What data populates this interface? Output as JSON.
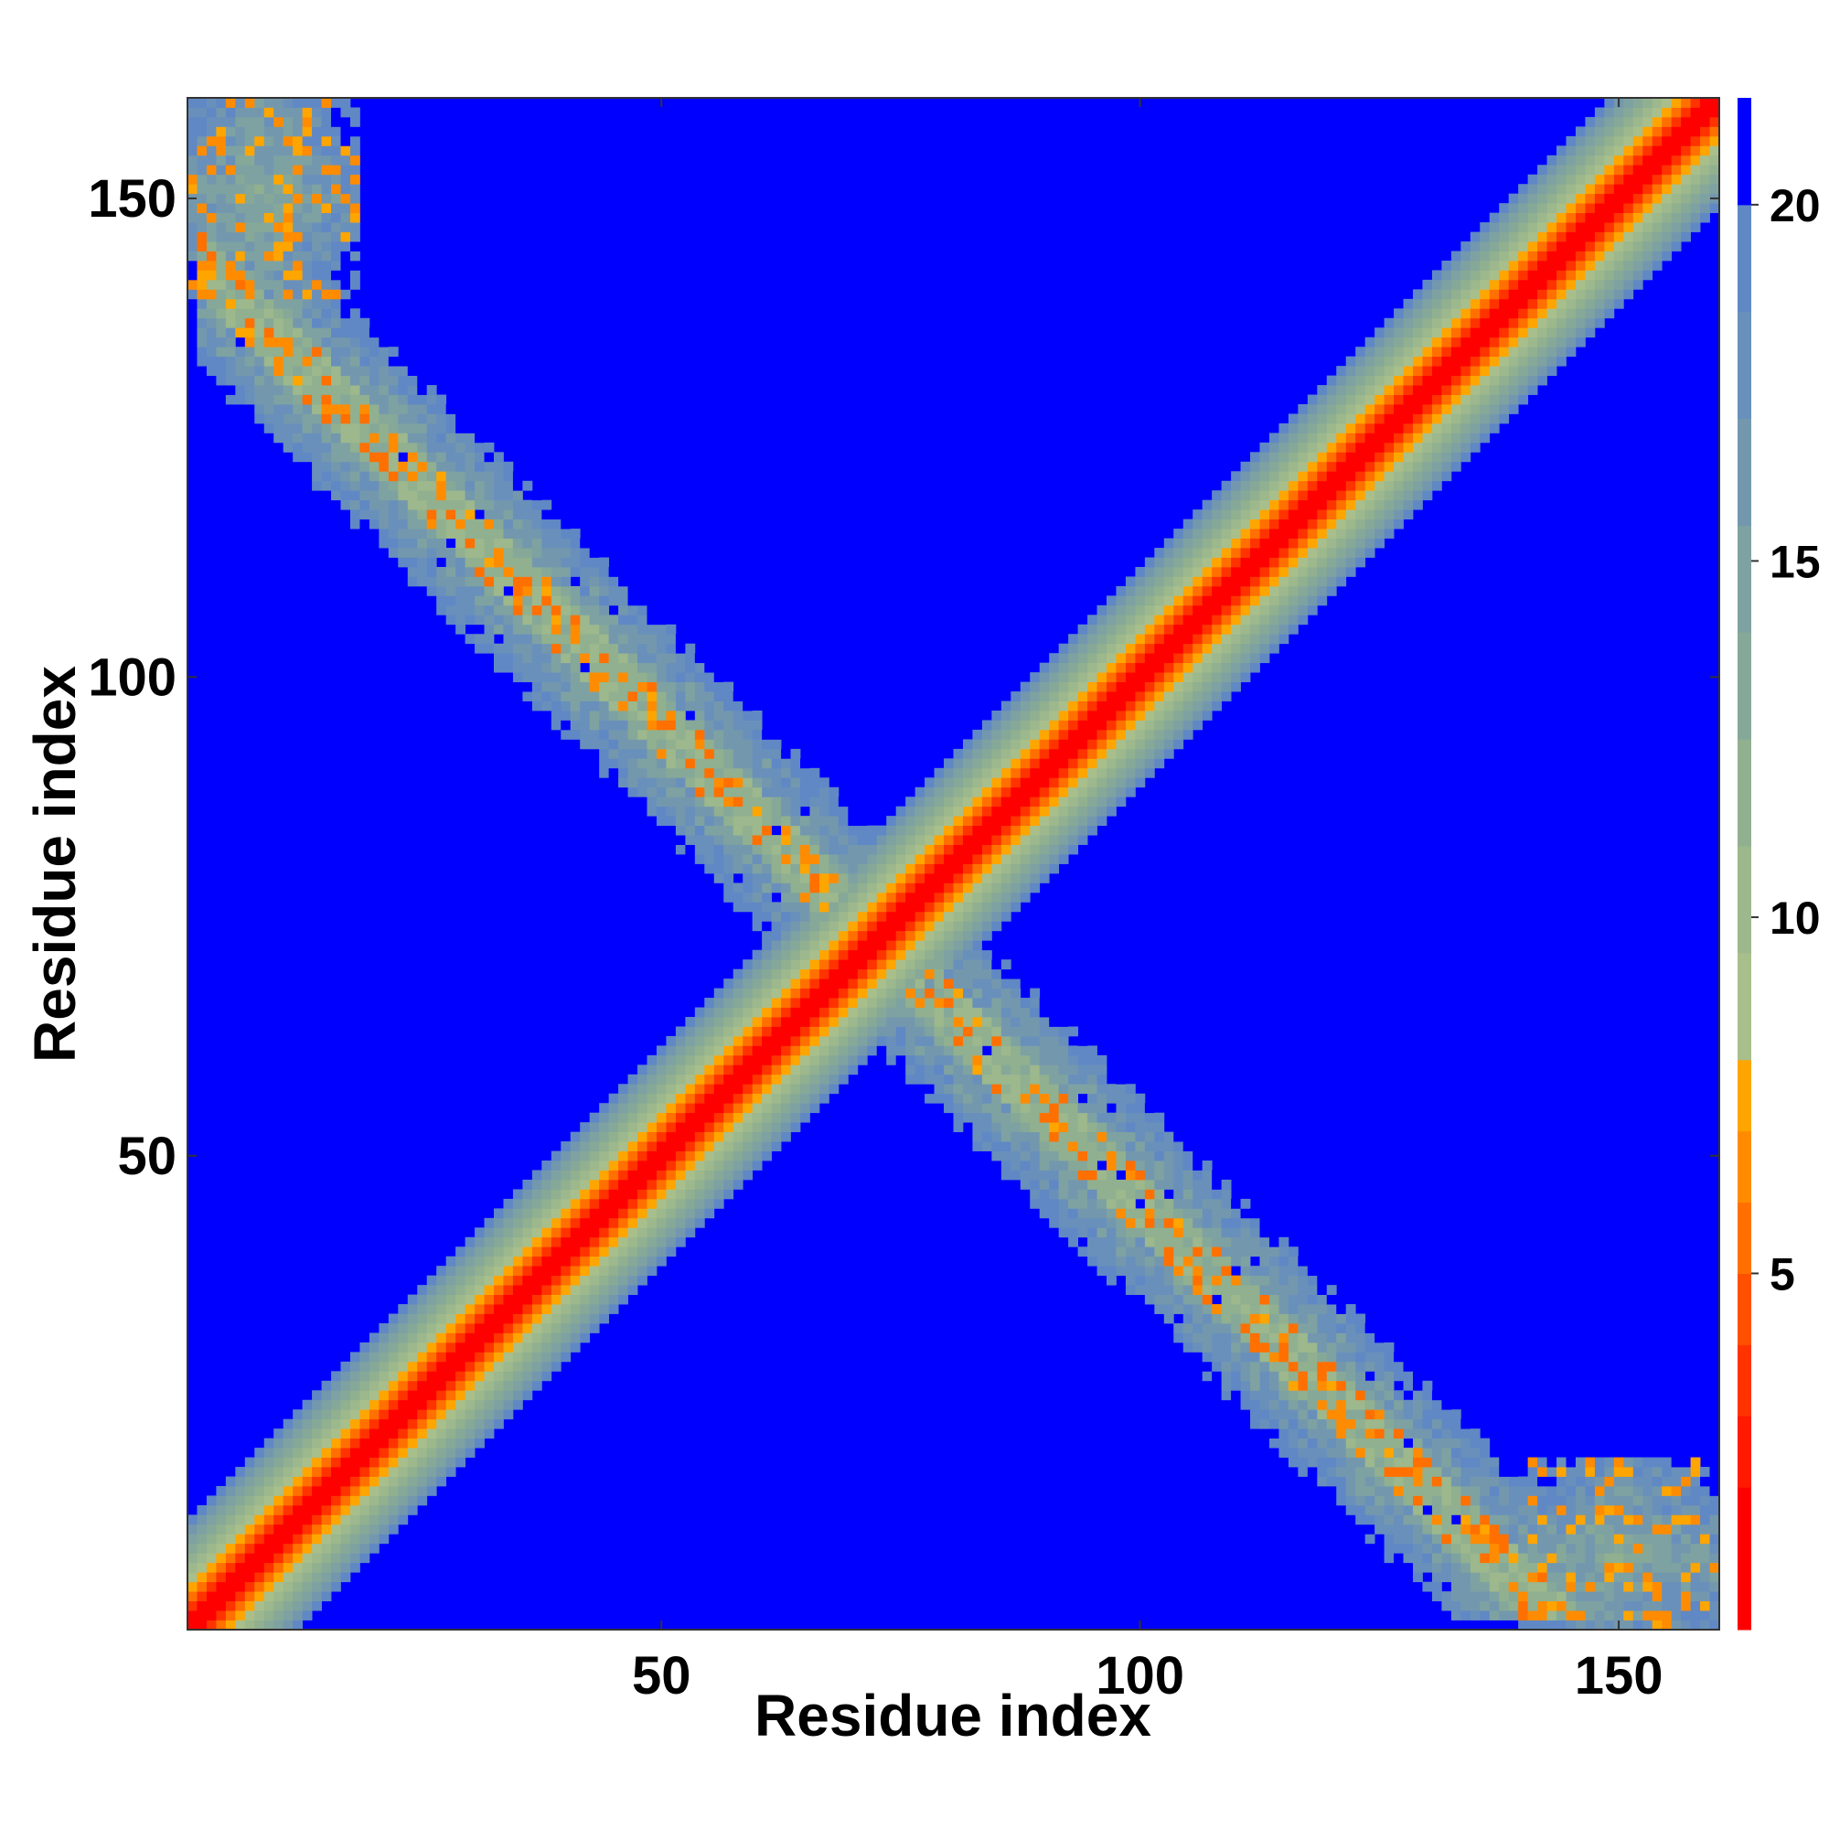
{
  "chart_data": {
    "type": "heatmap",
    "title": "",
    "xlabel": "Residue index",
    "ylabel": "Residue index",
    "n_residues": 160,
    "xlim": [
      1,
      160
    ],
    "ylim": [
      1,
      160
    ],
    "x_ticks": [
      "50",
      "100",
      "150"
    ],
    "y_ticks": [
      "50",
      "100",
      "150"
    ],
    "colorbar": {
      "range": [
        0,
        21.5
      ],
      "ticks": [
        "5",
        "10",
        "15",
        "20"
      ],
      "levels": [
        {
          "max": 2,
          "color": "#ff0000"
        },
        {
          "max": 3,
          "color": "#ff1a00"
        },
        {
          "max": 4,
          "color": "#ff3300"
        },
        {
          "max": 5,
          "color": "#ff5000"
        },
        {
          "max": 6,
          "color": "#ff7000"
        },
        {
          "max": 7,
          "color": "#ff8c00"
        },
        {
          "max": 8,
          "color": "#ffa500"
        },
        {
          "max": 9.5,
          "color": "#a8bf8c"
        },
        {
          "max": 11,
          "color": "#9cb88c"
        },
        {
          "max": 12.5,
          "color": "#90b090"
        },
        {
          "max": 14,
          "color": "#86a898"
        },
        {
          "max": 15.5,
          "color": "#7ea2a2"
        },
        {
          "max": 17,
          "color": "#7398ae"
        },
        {
          "max": 18.5,
          "color": "#6990bb"
        },
        {
          "max": 20,
          "color": "#6088c4"
        },
        {
          "max": 21.5,
          "color": "#0000ff"
        }
      ]
    },
    "features": {
      "diagonal_band": "distance increases away from the main diagonal; below ~8 near diagonal, saturated beyond ~13 residues",
      "anti_diagonal_band": "beta-sheet like contacts along i + j ≈ 145, residues ~5–160",
      "beyond_cutoff_value": 21.5
    }
  },
  "colors": {
    "background": "#ffffff",
    "far": "#0000ff",
    "near": "#ff0000"
  }
}
